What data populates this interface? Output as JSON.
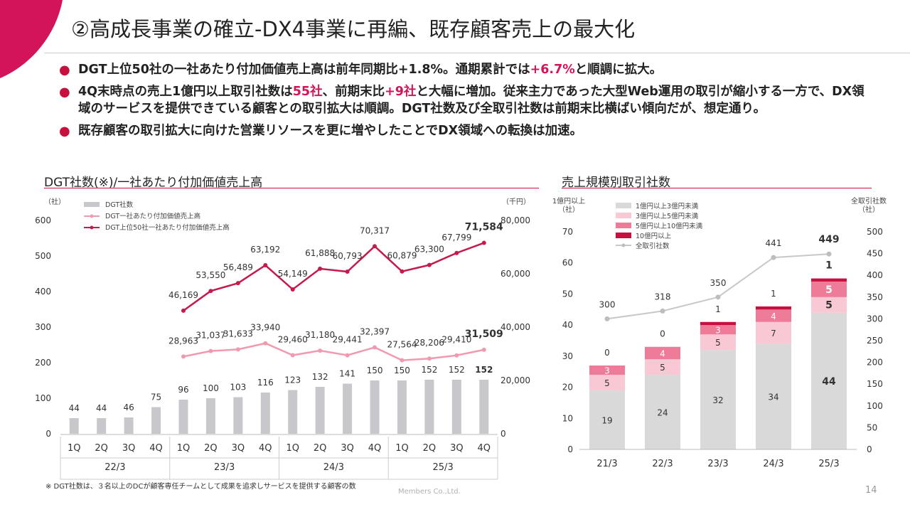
{
  "title": "②高成長事業の確立-DX4事業に再編、既存顧客売上の最大化",
  "bullets": [
    {
      "parts": [
        "DGT上位50社の一社あたり付加価値売上高は前年同期比+1.8%。通期累計では",
        "+6.7%",
        "と順調に拡大。"
      ]
    },
    {
      "parts": [
        "4Q末時点の売上1億円以上取引社数は",
        "55社",
        "、前期末比",
        "+9社",
        "と大幅に増加。従来主力であった大型Web運用の取引が縮小する一方で、DX領域のサービスを提供できている顧客との取引拡大は順調。DGT社数及び全取引社数は前期末比横ばい傾向だが、想定通り。"
      ]
    },
    {
      "parts": [
        "既存顧客の取引拡大に向けた営業リソースを更に増やしたことでDX領域への転換は加速。"
      ]
    }
  ],
  "left_title": "DGT社数(※)/一社あたり付加価値売上高",
  "right_title": "売上規模別取引社数",
  "footnote": "※ DGT社数は、３名以上のDCが顧客専任チームとして成果を追求しサービスを提供する顧客の数",
  "company": "Members Co.,Ltd.",
  "page_number": "14",
  "colors": {
    "accent": "#c8103e",
    "bar_gray": "#c8c8cc",
    "line_dark": "#c41a4c",
    "line_light": "#f09ab0"
  },
  "chart_data": [
    {
      "type": "bar",
      "left_unit": "（社）",
      "right_unit": "（千円）",
      "ylim_left": [
        0,
        600
      ],
      "ylim_right": [
        0,
        80000
      ],
      "left_ticks": [
        "0",
        "100",
        "200",
        "300",
        "400",
        "500",
        "600"
      ],
      "right_ticks": [
        "0",
        "20,000",
        "40,000",
        "60,000",
        "80,000"
      ],
      "categories": [
        "1Q",
        "2Q",
        "3Q",
        "4Q",
        "1Q",
        "2Q",
        "3Q",
        "4Q",
        "1Q",
        "2Q",
        "3Q",
        "4Q",
        "1Q",
        "2Q",
        "3Q",
        "4Q"
      ],
      "groups": [
        "22/3",
        "23/3",
        "24/3",
        "25/3"
      ],
      "legend": [
        "DGT社数",
        "DGT一社あたり付加価値売上高",
        "DGT上位50社一社あたり付加価値売上高"
      ],
      "bars": {
        "values": [
          44,
          44,
          46,
          75,
          96,
          100,
          103,
          116,
          123,
          132,
          141,
          150,
          150,
          152,
          152,
          152
        ],
        "labels": [
          "44",
          "44",
          "46",
          "75",
          "96",
          "100",
          "103",
          "116",
          "123",
          "132",
          "141",
          "150",
          "150",
          "152",
          "152",
          "152"
        ]
      },
      "light_line": {
        "values": [
          28963,
          31037,
          31633,
          33940,
          29460,
          31180,
          29441,
          32397,
          27564,
          28206,
          29410,
          31509
        ],
        "labels": [
          "28,963",
          "31,037",
          "31,633",
          "33,940",
          "29,460",
          "31,180",
          "29,441",
          "32,397",
          "27,564",
          "28,206",
          "29,410",
          "31,509"
        ]
      },
      "dark_line": {
        "values": [
          46169,
          53550,
          56489,
          63192,
          54149,
          61888,
          60793,
          70317,
          60879,
          63300,
          67799,
          71584
        ],
        "labels": [
          "46,169",
          "53,550",
          "56,489",
          "63,192",
          "54,149",
          "61,888",
          "60,793",
          "70,317",
          "60,879",
          "63,300",
          "67,799",
          "71,584"
        ]
      }
    },
    {
      "type": "bar",
      "stacked": true,
      "left_unit": "1億円以上\n（社）",
      "right_unit": "全取引社数\n（社）",
      "ylim_left": [
        0,
        70
      ],
      "ylim_right": [
        0,
        500
      ],
      "left_ticks": [
        "0",
        "10",
        "20",
        "30",
        "40",
        "50",
        "60",
        "70"
      ],
      "right_ticks": [
        "0",
        "50",
        "100",
        "150",
        "200",
        "250",
        "300",
        "350",
        "400",
        "450",
        "500"
      ],
      "categories": [
        "21/3",
        "22/3",
        "23/3",
        "24/3",
        "25/3"
      ],
      "series": [
        {
          "name": "1億円以上3億円未満",
          "values": [
            19,
            24,
            32,
            34,
            44
          ],
          "color": "#d9d9d9"
        },
        {
          "name": "3億円以上5億円未満",
          "values": [
            5,
            5,
            5,
            7,
            5
          ],
          "color": "#f8c8d4"
        },
        {
          "name": "5億円以上10億円未満",
          "values": [
            3,
            4,
            3,
            4,
            5
          ],
          "color": "#ee7b98"
        },
        {
          "name": "10億円以上",
          "values": [
            0,
            0,
            1,
            1,
            1
          ],
          "color": "#c8103e"
        }
      ],
      "total_line": {
        "name": "全取引社数",
        "values": [
          300,
          318,
          350,
          441,
          449
        ]
      }
    }
  ]
}
